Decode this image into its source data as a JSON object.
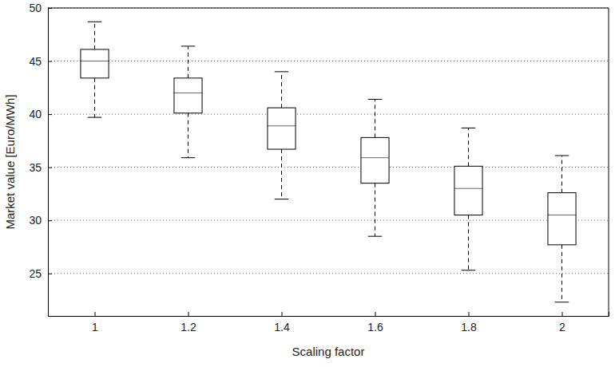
{
  "chart_data": {
    "type": "box",
    "x_label": "Scaling factor",
    "y_label": "Market value [Euro/MWh]",
    "categories": [
      "1",
      "1.2",
      "1.4",
      "1.6",
      "1.8",
      "2"
    ],
    "whisker_low": [
      39.7,
      35.9,
      32.0,
      28.5,
      25.3,
      22.3
    ],
    "q1": [
      43.4,
      40.1,
      36.7,
      33.5,
      30.5,
      27.7
    ],
    "median": [
      45.0,
      42.0,
      38.9,
      35.9,
      33.0,
      30.5
    ],
    "q3": [
      46.1,
      43.4,
      40.6,
      37.8,
      35.1,
      32.6
    ],
    "whisker_high": [
      48.7,
      46.4,
      44.0,
      41.4,
      38.7,
      36.1
    ],
    "color": "#000000",
    "line_style": "dashed",
    "ylim": [
      21,
      50
    ],
    "yticks": [
      25,
      30,
      35,
      40,
      45,
      50
    ],
    "grid": true
  }
}
